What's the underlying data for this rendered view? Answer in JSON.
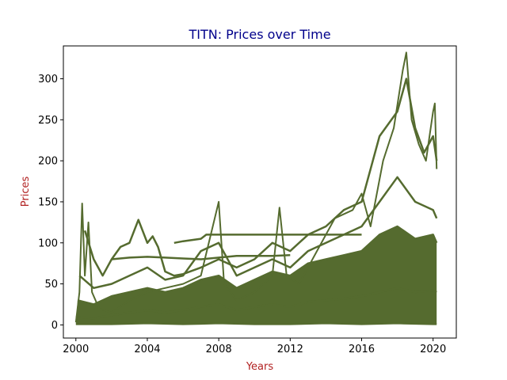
{
  "chart_data": {
    "type": "line",
    "title": "TITN: Prices over Time",
    "xlabel": "Years",
    "ylabel": "Prices",
    "xlim": [
      1999.3,
      2021.3
    ],
    "ylim": [
      -16,
      340
    ],
    "xticks": [
      2000,
      2004,
      2008,
      2012,
      2016,
      2020
    ],
    "yticks": [
      0,
      50,
      100,
      150,
      200,
      250,
      300
    ],
    "grid": false,
    "legend": "none",
    "colors": {
      "series": "#556b2f",
      "title": "#00008b",
      "axis_label": "#b22222"
    },
    "series": [
      {
        "values": [
          [
            2000.0,
            3
          ],
          [
            2000.2,
            40
          ],
          [
            2000.35,
            148
          ],
          [
            2000.5,
            60
          ],
          [
            2000.7,
            125
          ],
          [
            2000.9,
            40
          ],
          [
            2001.3,
            20
          ],
          [
            2002.0,
            15
          ],
          [
            2003.0,
            30
          ],
          [
            2004.0,
            40
          ],
          [
            2005.0,
            45
          ],
          [
            2006.0,
            50
          ],
          [
            2007.0,
            60
          ],
          [
            2008.0,
            150
          ],
          [
            2008.3,
            50
          ],
          [
            2009.0,
            30
          ],
          [
            2010.0,
            40
          ],
          [
            2011.0,
            60
          ],
          [
            2011.4,
            143
          ],
          [
            2011.8,
            60
          ],
          [
            2012.5,
            50
          ],
          [
            2013.5,
            90
          ],
          [
            2014.5,
            130
          ],
          [
            2015.5,
            140
          ],
          [
            2016.0,
            160
          ],
          [
            2016.5,
            120
          ],
          [
            2017.2,
            200
          ],
          [
            2017.8,
            240
          ],
          [
            2018.3,
            310
          ],
          [
            2018.5,
            332
          ],
          [
            2018.8,
            250
          ],
          [
            2019.2,
            220
          ],
          [
            2019.6,
            200
          ],
          [
            2020.0,
            260
          ],
          [
            2020.1,
            270
          ],
          [
            2020.2,
            190
          ]
        ]
      },
      {
        "values": [
          [
            2000.5,
            115
          ],
          [
            2001.0,
            80
          ],
          [
            2001.5,
            60
          ],
          [
            2002.0,
            80
          ],
          [
            2002.5,
            95
          ],
          [
            2003.0,
            100
          ],
          [
            2003.5,
            128
          ],
          [
            2004.0,
            100
          ],
          [
            2004.3,
            108
          ],
          [
            2004.6,
            95
          ],
          [
            2005.0,
            65
          ],
          [
            2005.5,
            60
          ],
          [
            2006.0,
            62
          ],
          [
            2007.0,
            70
          ],
          [
            2008.0,
            80
          ],
          [
            2009.0,
            70
          ],
          [
            2010.0,
            80
          ],
          [
            2011.0,
            100
          ],
          [
            2012.0,
            90
          ],
          [
            2013.0,
            110
          ],
          [
            2014.0,
            120
          ],
          [
            2015.0,
            140
          ],
          [
            2016.0,
            150
          ],
          [
            2017.0,
            230
          ],
          [
            2018.0,
            260
          ],
          [
            2018.5,
            300
          ],
          [
            2019.0,
            240
          ],
          [
            2019.5,
            210
          ],
          [
            2020.0,
            230
          ],
          [
            2020.2,
            200
          ]
        ]
      },
      {
        "values": [
          [
            2000.2,
            60
          ],
          [
            2001.0,
            45
          ],
          [
            2002.0,
            50
          ],
          [
            2003.0,
            60
          ],
          [
            2004.0,
            70
          ],
          [
            2005.0,
            55
          ],
          [
            2006.0,
            60
          ],
          [
            2007.0,
            90
          ],
          [
            2008.0,
            100
          ],
          [
            2009.0,
            60
          ],
          [
            2010.0,
            70
          ],
          [
            2011.0,
            80
          ],
          [
            2012.0,
            70
          ],
          [
            2013.0,
            90
          ],
          [
            2014.0,
            100
          ],
          [
            2015.0,
            110
          ],
          [
            2016.0,
            120
          ],
          [
            2017.0,
            150
          ],
          [
            2018.0,
            180
          ],
          [
            2019.0,
            150
          ],
          [
            2020.0,
            140
          ],
          [
            2020.2,
            130
          ]
        ]
      },
      {
        "values": [
          [
            2000.1,
            30
          ],
          [
            2001.0,
            25
          ],
          [
            2002.0,
            35
          ],
          [
            2003.0,
            40
          ],
          [
            2004.0,
            45
          ],
          [
            2005.0,
            40
          ],
          [
            2006.0,
            45
          ],
          [
            2007.0,
            55
          ],
          [
            2008.0,
            60
          ],
          [
            2009.0,
            45
          ],
          [
            2010.0,
            55
          ],
          [
            2011.0,
            65
          ],
          [
            2012.0,
            60
          ],
          [
            2013.0,
            75
          ],
          [
            2014.0,
            80
          ],
          [
            2015.0,
            85
          ],
          [
            2016.0,
            90
          ],
          [
            2017.0,
            110
          ],
          [
            2018.0,
            120
          ],
          [
            2019.0,
            105
          ],
          [
            2020.0,
            110
          ],
          [
            2020.2,
            100
          ]
        ]
      },
      {
        "values": [
          [
            2005.5,
            100
          ],
          [
            2006.0,
            102
          ],
          [
            2007.0,
            105
          ],
          [
            2007.3,
            110
          ],
          [
            2008.0,
            110
          ],
          [
            2009.0,
            110
          ],
          [
            2010.0,
            110
          ],
          [
            2011.0,
            110
          ],
          [
            2012.0,
            110
          ],
          [
            2013.0,
            110
          ],
          [
            2014.0,
            110
          ],
          [
            2015.0,
            110
          ],
          [
            2016.0,
            110
          ]
        ]
      },
      {
        "values": [
          [
            2002.0,
            80
          ],
          [
            2003.0,
            82
          ],
          [
            2004.0,
            83
          ],
          [
            2005.0,
            82
          ],
          [
            2006.0,
            81
          ],
          [
            2007.0,
            80
          ],
          [
            2008.0,
            82
          ],
          [
            2009.0,
            84
          ],
          [
            2010.0,
            84
          ],
          [
            2011.0,
            84
          ],
          [
            2012.0,
            85
          ]
        ]
      },
      {
        "values": [
          [
            2000.0,
            10
          ],
          [
            2001.0,
            8
          ],
          [
            2002.0,
            12
          ],
          [
            2003.0,
            15
          ],
          [
            2004.0,
            18
          ],
          [
            2005.0,
            15
          ],
          [
            2006.0,
            18
          ],
          [
            2007.0,
            22
          ],
          [
            2008.0,
            25
          ],
          [
            2009.0,
            18
          ],
          [
            2010.0,
            22
          ],
          [
            2011.0,
            25
          ],
          [
            2012.0,
            22
          ],
          [
            2013.0,
            28
          ],
          [
            2014.0,
            30
          ],
          [
            2015.0,
            32
          ],
          [
            2016.0,
            35
          ],
          [
            2017.0,
            40
          ],
          [
            2018.0,
            45
          ],
          [
            2019.0,
            40
          ],
          [
            2020.0,
            42
          ],
          [
            2020.2,
            40
          ]
        ]
      },
      {
        "values": [
          [
            2000.0,
            1
          ],
          [
            2002.0,
            1
          ],
          [
            2004.0,
            2
          ],
          [
            2006.0,
            1
          ],
          [
            2008.0,
            2
          ],
          [
            2010.0,
            1
          ],
          [
            2012.0,
            1
          ],
          [
            2014.0,
            2
          ],
          [
            2016.0,
            1
          ],
          [
            2018.0,
            2
          ],
          [
            2020.0,
            1
          ],
          [
            2020.2,
            1
          ]
        ]
      }
    ]
  }
}
